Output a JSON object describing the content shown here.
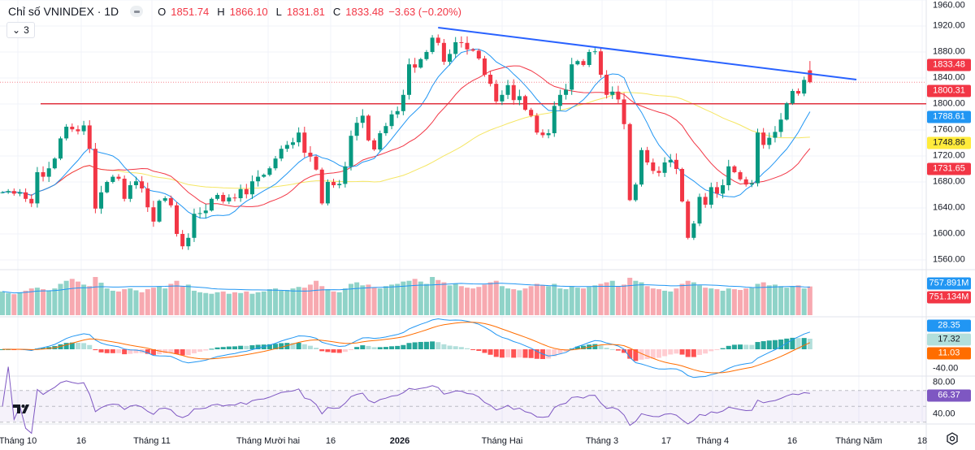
{
  "header": {
    "title": "Chỉ số VNINDEX · 1D",
    "o_label": "O",
    "o_value": "1851.74",
    "h_label": "H",
    "h_value": "1866.10",
    "l_label": "L",
    "l_value": "1831.81",
    "c_label": "C",
    "c_value": "1833.48",
    "change": "−3.63 (−0.20%)",
    "indicators_toggle": "3"
  },
  "colors": {
    "up": "#089981",
    "down": "#f23645",
    "ma_short": "#2196f3",
    "ma_mid": "#f23645",
    "ma_long": "#f5e663",
    "trendline": "#2962ff",
    "level": "#e0323f",
    "macd": "#2196f3",
    "signal": "#ff6d00",
    "rsi": "#7e57c2",
    "grid": "#f0f3fa"
  },
  "chart_data": [
    {
      "type": "candlestick",
      "name": "Chỉ số VNINDEX · 1D",
      "ylim": [
        1550,
        1965
      ],
      "y_ticks": [
        "1960.00",
        "1920.00",
        "1880.00",
        "1840.00",
        "1800.00",
        "1760.00",
        "1720.00",
        "1680.00",
        "1640.00",
        "1600.00",
        "1560.00"
      ],
      "x_tick_labels": [
        "Tháng 10",
        "16",
        "Tháng 11",
        "Tháng Mười hai",
        "16",
        "2026",
        "Tháng Hai",
        "Tháng 3",
        "17",
        "Tháng 4",
        "16",
        "Tháng Năm",
        "18"
      ],
      "closes": [
        1664,
        1666,
        1662,
        1664,
        1654,
        1647,
        1695,
        1688,
        1701,
        1716,
        1747,
        1765,
        1761,
        1758,
        1767,
        1731,
        1639,
        1664,
        1680,
        1688,
        1685,
        1654,
        1675,
        1681,
        1670,
        1641,
        1619,
        1651,
        1655,
        1644,
        1600,
        1581,
        1594,
        1631,
        1632,
        1636,
        1654,
        1660,
        1650,
        1656,
        1655,
        1669,
        1661,
        1681,
        1688,
        1691,
        1701,
        1716,
        1731,
        1737,
        1741,
        1756,
        1725,
        1719,
        1699,
        1647,
        1680,
        1675,
        1677,
        1704,
        1751,
        1771,
        1782,
        1744,
        1730,
        1755,
        1766,
        1784,
        1789,
        1814,
        1861,
        1856,
        1869,
        1880,
        1902,
        1894,
        1865,
        1877,
        1895,
        1894,
        1884,
        1882,
        1870,
        1845,
        1831,
        1804,
        1814,
        1829,
        1806,
        1812,
        1791,
        1782,
        1756,
        1752,
        1755,
        1797,
        1814,
        1822,
        1861,
        1866,
        1860,
        1880,
        1881,
        1845,
        1814,
        1819,
        1807,
        1769,
        1652,
        1676,
        1729,
        1710,
        1697,
        1694,
        1710,
        1714,
        1700,
        1650,
        1594,
        1616,
        1657,
        1645,
        1672,
        1662,
        1675,
        1704,
        1695,
        1684,
        1676,
        1678,
        1756,
        1737,
        1748,
        1757,
        1776,
        1801,
        1820,
        1816,
        1837,
        1833.48
      ],
      "last_bar": {
        "open": 1851.74,
        "high": 1866.1,
        "low": 1831.81,
        "close": 1833.48
      },
      "last_price_label": "1833.48",
      "moving_averages": [
        {
          "period": 10,
          "last": "1788.61",
          "color": "#2196f3"
        },
        {
          "period": 20,
          "last": "1731.65",
          "color": "#f23645"
        },
        {
          "period": 50,
          "last": "1748.86",
          "color": "#f5e663"
        }
      ],
      "horizontal_level": {
        "price": 1800.31,
        "label": "1800.31"
      },
      "trendline": {
        "from": {
          "bar": 75,
          "price": 1917.5
        },
        "to": {
          "bar": 147,
          "price": 1837.5
        }
      }
    },
    {
      "type": "bar",
      "name": "Volume",
      "unit": "M",
      "values": [
        620,
        580,
        550,
        600,
        640,
        700,
        720,
        680,
        650,
        700,
        820,
        900,
        950,
        880,
        800,
        760,
        1000,
        850,
        700,
        640,
        620,
        680,
        700,
        650,
        600,
        680,
        720,
        750,
        700,
        820,
        900,
        760,
        800,
        640,
        600,
        580,
        560,
        600,
        620,
        560,
        600,
        580,
        620,
        560,
        600,
        620,
        680,
        700,
        640,
        660,
        700,
        740,
        720,
        800,
        900,
        760,
        680,
        620,
        600,
        700,
        820,
        860,
        780,
        800,
        720,
        700,
        760,
        800,
        820,
        880,
        900,
        950,
        880,
        820,
        1000,
        920,
        860,
        780,
        820,
        760,
        720,
        700,
        740,
        800,
        860,
        900,
        760,
        700,
        680,
        650,
        700,
        760,
        820,
        780,
        760,
        820,
        700,
        680,
        760,
        720,
        700,
        740,
        780,
        820,
        860,
        900,
        760,
        800,
        980,
        900,
        860,
        760,
        700,
        680,
        640,
        620,
        700,
        820,
        900,
        860,
        780,
        720,
        700,
        680,
        640,
        700,
        680,
        660,
        700,
        720,
        820,
        860,
        780,
        800,
        760,
        720,
        760,
        780,
        700,
        751.134
      ],
      "ma_label": "757.891M",
      "last_label": "751.134M",
      "ylim": [
        0,
        1050
      ]
    },
    {
      "type": "line",
      "name": "MACD",
      "macd_label": "28.35",
      "histogram_label": "17.32",
      "signal_label": "11.03",
      "y_tick": "-40.00"
    },
    {
      "type": "line",
      "name": "RSI",
      "period": 14,
      "value_label": "66.37",
      "y_ticks": [
        "80.00",
        "40.00"
      ],
      "band": [
        30,
        70
      ]
    }
  ]
}
